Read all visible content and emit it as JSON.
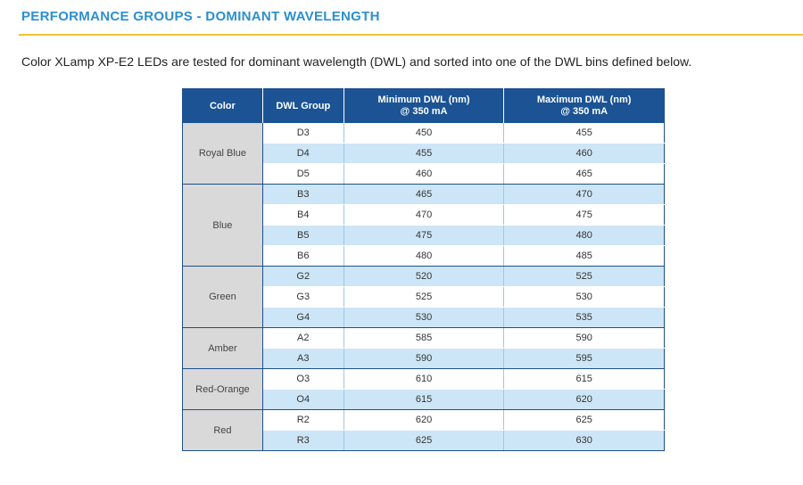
{
  "header": {
    "title": "PERFORMANCE GROUPS - DOMINANT WAVELENGTH",
    "intro": "Color XLamp XP-E2 LEDs are tested for dominant wavelength (DWL) and sorted into one of the DWL bins defined below."
  },
  "table": {
    "columns": {
      "color": "Color",
      "group": "DWL Group",
      "min_line1": "Minimum DWL (nm)",
      "min_line2": "@ 350 mA",
      "max_line1": "Maximum DWL (nm)",
      "max_line2": "@ 350 mA"
    },
    "groups": [
      {
        "color": "Royal Blue",
        "rows": [
          {
            "bin": "D3",
            "min": "450",
            "max": "455"
          },
          {
            "bin": "D4",
            "min": "455",
            "max": "460"
          },
          {
            "bin": "D5",
            "min": "460",
            "max": "465"
          }
        ]
      },
      {
        "color": "Blue",
        "rows": [
          {
            "bin": "B3",
            "min": "465",
            "max": "470"
          },
          {
            "bin": "B4",
            "min": "470",
            "max": "475"
          },
          {
            "bin": "B5",
            "min": "475",
            "max": "480"
          },
          {
            "bin": "B6",
            "min": "480",
            "max": "485"
          }
        ]
      },
      {
        "color": "Green",
        "rows": [
          {
            "bin": "G2",
            "min": "520",
            "max": "525"
          },
          {
            "bin": "G3",
            "min": "525",
            "max": "530"
          },
          {
            "bin": "G4",
            "min": "530",
            "max": "535"
          }
        ]
      },
      {
        "color": "Amber",
        "rows": [
          {
            "bin": "A2",
            "min": "585",
            "max": "590"
          },
          {
            "bin": "A3",
            "min": "590",
            "max": "595"
          }
        ]
      },
      {
        "color": "Red-Orange",
        "rows": [
          {
            "bin": "O3",
            "min": "610",
            "max": "615"
          },
          {
            "bin": "O4",
            "min": "615",
            "max": "620"
          }
        ]
      },
      {
        "color": "Red",
        "rows": [
          {
            "bin": "R2",
            "min": "620",
            "max": "625"
          },
          {
            "bin": "R3",
            "min": "625",
            "max": "630"
          }
        ]
      }
    ]
  },
  "colors": {
    "title": "#2b8fd0",
    "rule": "#f2c230",
    "header_bg": "#1b5394",
    "stripe": "#cde6f7",
    "color_cell_bg": "#d9d9d9"
  }
}
